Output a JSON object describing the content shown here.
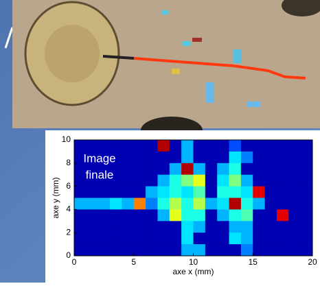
{
  "chart_data": {
    "type": "heatmap",
    "annotation_lines": [
      "Image",
      "finale"
    ],
    "xlabel": "axe x (mm)",
    "ylabel": "axe y (mm)",
    "xlim": [
      0,
      20
    ],
    "ylim": [
      0,
      10
    ],
    "xticks": [
      0,
      5,
      10,
      15,
      20
    ],
    "yticks": [
      0,
      2,
      4,
      6,
      8,
      10
    ],
    "colormap": "jet",
    "zlim": [
      0,
      1
    ],
    "z": [
      [
        0.05,
        0.05,
        0.05,
        0.05,
        0.05,
        0.05,
        0.05,
        0.95,
        0.05,
        0.3,
        0.05,
        0.05,
        0.05,
        0.2,
        0.05,
        0.05,
        0.05,
        0.05,
        0.05,
        0.05
      ],
      [
        0.05,
        0.05,
        0.05,
        0.05,
        0.05,
        0.05,
        0.05,
        0.05,
        0.05,
        0.3,
        0.05,
        0.05,
        0.05,
        0.35,
        0.25,
        0.05,
        0.05,
        0.05,
        0.05,
        0.05
      ],
      [
        0.05,
        0.05,
        0.05,
        0.05,
        0.05,
        0.05,
        0.05,
        0.05,
        0.3,
        0.95,
        0.3,
        0.05,
        0.3,
        0.4,
        0.05,
        0.05,
        0.05,
        0.05,
        0.05,
        0.05
      ],
      [
        0.05,
        0.05,
        0.05,
        0.05,
        0.05,
        0.05,
        0.05,
        0.3,
        0.4,
        0.5,
        0.6,
        0.05,
        0.35,
        0.5,
        0.3,
        0.05,
        0.05,
        0.05,
        0.05,
        0.05
      ],
      [
        0.05,
        0.05,
        0.05,
        0.05,
        0.05,
        0.05,
        0.3,
        0.35,
        0.4,
        0.35,
        0.45,
        0.05,
        0.4,
        0.4,
        0.35,
        0.9,
        0.05,
        0.05,
        0.05,
        0.05
      ],
      [
        0.3,
        0.3,
        0.3,
        0.35,
        0.3,
        0.75,
        0.25,
        0.4,
        0.55,
        0.4,
        0.55,
        0.3,
        0.35,
        0.95,
        0.4,
        0.3,
        0.05,
        0.05,
        0.05,
        0.05
      ],
      [
        0.05,
        0.05,
        0.05,
        0.05,
        0.05,
        0.05,
        0.05,
        0.3,
        0.6,
        0.4,
        0.4,
        0.05,
        0.3,
        0.4,
        0.45,
        0.05,
        0.05,
        0.9,
        0.05,
        0.05
      ],
      [
        0.05,
        0.05,
        0.05,
        0.05,
        0.05,
        0.05,
        0.05,
        0.05,
        0.05,
        0.35,
        0.3,
        0.05,
        0.05,
        0.3,
        0.3,
        0.05,
        0.05,
        0.05,
        0.05,
        0.05
      ],
      [
        0.05,
        0.05,
        0.05,
        0.05,
        0.05,
        0.05,
        0.05,
        0.05,
        0.05,
        0.35,
        0.05,
        0.05,
        0.05,
        0.35,
        0.3,
        0.05,
        0.05,
        0.05,
        0.05,
        0.05
      ],
      [
        0.05,
        0.05,
        0.05,
        0.05,
        0.05,
        0.05,
        0.05,
        0.05,
        0.05,
        0.3,
        0.3,
        0.05,
        0.05,
        0.05,
        0.25,
        0.05,
        0.05,
        0.05,
        0.05,
        0.05
      ]
    ]
  }
}
